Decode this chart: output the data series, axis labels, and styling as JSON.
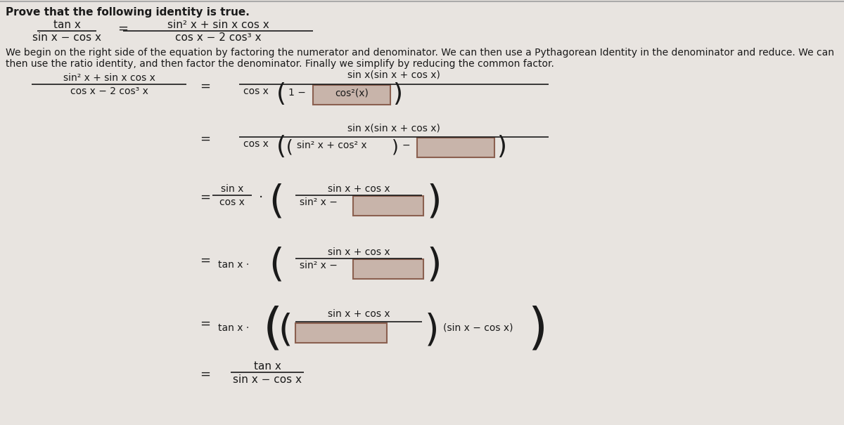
{
  "bg_color": "#e8e4e0",
  "text_color": "#1a1a1a",
  "box_fill": "#c8b4aa",
  "box_edge": "#8b6050",
  "title": "Prove that the following identity is true.",
  "desc_line1": "We begin on the right side of the equation by factoring the numerator and denominator. We can then use a Pythagorean Identity in the denominator and reduce. We can",
  "desc_line2": "then use the ratio identity, and then factor the denominator. Finally we simplify by reducing the common factor.",
  "figw": 12.0,
  "figh": 6.05,
  "dpi": 100
}
